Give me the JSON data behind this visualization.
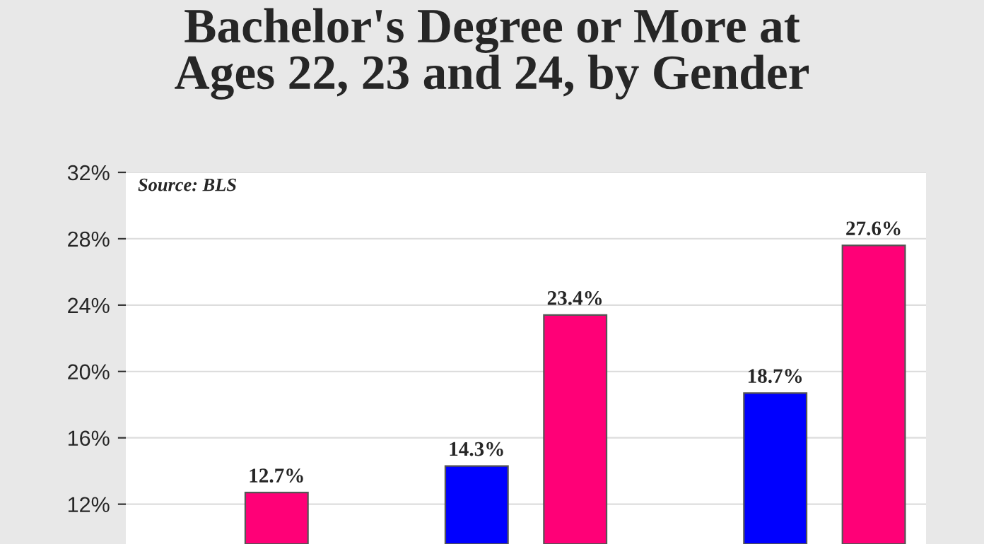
{
  "chart_data": {
    "type": "bar",
    "title": "Bachelor's Degree or More at\nAges 22, 23 and 24, by Gender",
    "categories": [
      null,
      null,
      null
    ],
    "series": [
      {
        "color": "#0000ff",
        "values": [
          null,
          14.3,
          18.7
        ],
        "value_labels": [
          null,
          "14.3%",
          "18.7%"
        ]
      },
      {
        "color": "#ff0077",
        "values": [
          12.7,
          23.4,
          27.6
        ],
        "value_labels": [
          "12.7%",
          "23.4%",
          "27.6%"
        ]
      }
    ],
    "ylim": [
      9.6,
      32
    ],
    "yticks": [
      {
        "value": 12,
        "label": "12%"
      },
      {
        "value": 16,
        "label": "16%"
      },
      {
        "value": 20,
        "label": "20%"
      },
      {
        "value": 24,
        "label": "24%"
      },
      {
        "value": 28,
        "label": "28%"
      },
      {
        "value": 32,
        "label": "32%"
      }
    ],
    "grid": "y",
    "annotations": [
      "Source: BLS"
    ]
  }
}
